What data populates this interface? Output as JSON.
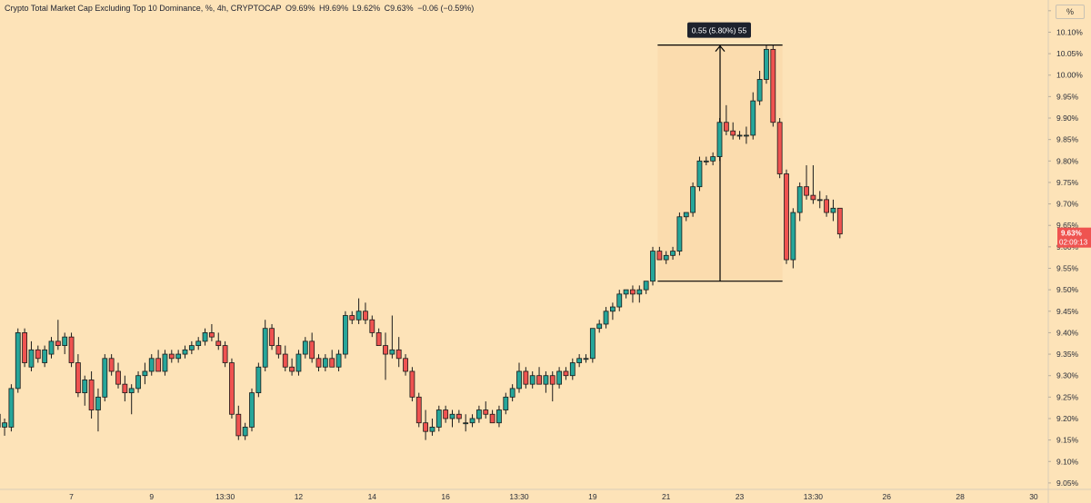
{
  "header": {
    "title": "Crypto Total Market Cap Excluding Top 10 Dominance, %, 4h, CRYPTOCAP",
    "open": "O9.69%",
    "high": "H9.69%",
    "low": "L9.62%",
    "close": "C9.63%",
    "change": "−0.06 (−0.59%)"
  },
  "unit_button": "%",
  "measure_label": "0.55 (5.80%) 55",
  "price_tag": {
    "value": "9.63%",
    "countdown": "02:09:13"
  },
  "colors": {
    "background": "#fde3b8",
    "up": "#26a69a",
    "down": "#ef5350",
    "measure_fill": "#fbdcae",
    "tooltip_bg": "#1e222d"
  },
  "chart_data": {
    "type": "candlestick",
    "interval": "4h",
    "ylim": [
      9.035,
      10.175
    ],
    "y_ticks": [
      "10.15%",
      "10.10%",
      "10.05%",
      "10.00%",
      "9.95%",
      "9.90%",
      "9.85%",
      "9.80%",
      "9.75%",
      "9.70%",
      "9.65%",
      "9.60%",
      "9.55%",
      "9.50%",
      "9.45%",
      "9.40%",
      "9.35%",
      "9.30%",
      "9.25%",
      "9.20%",
      "9.15%",
      "9.10%",
      "9.05%"
    ],
    "x_ticks": [
      "7",
      "9",
      "13:30",
      "12",
      "14",
      "16",
      "13:30",
      "19",
      "21",
      "23",
      "13:30",
      "26",
      "28",
      "30"
    ],
    "x_tick_index": [
      13,
      25,
      36,
      47,
      58,
      69,
      80,
      91,
      102,
      113,
      124,
      135,
      146,
      157
    ],
    "candles": [
      {
        "o": 9.1,
        "h": 9.13,
        "l": 9.04,
        "c": 9.05
      },
      {
        "o": 9.05,
        "h": 9.22,
        "l": 9.03,
        "c": 9.21
      },
      {
        "o": 9.21,
        "h": 9.23,
        "l": 9.15,
        "c": 9.18
      },
      {
        "o": 9.18,
        "h": 9.2,
        "l": 9.16,
        "c": 9.19
      },
      {
        "o": 9.18,
        "h": 9.28,
        "l": 9.17,
        "c": 9.27
      },
      {
        "o": 9.27,
        "h": 9.41,
        "l": 9.26,
        "c": 9.4
      },
      {
        "o": 9.4,
        "h": 9.41,
        "l": 9.32,
        "c": 9.33
      },
      {
        "o": 9.32,
        "h": 9.38,
        "l": 9.31,
        "c": 9.36
      },
      {
        "o": 9.36,
        "h": 9.37,
        "l": 9.33,
        "c": 9.34
      },
      {
        "o": 9.33,
        "h": 9.37,
        "l": 9.32,
        "c": 9.36
      },
      {
        "o": 9.35,
        "h": 9.39,
        "l": 9.34,
        "c": 9.38
      },
      {
        "o": 9.38,
        "h": 9.43,
        "l": 9.36,
        "c": 9.37
      },
      {
        "o": 9.37,
        "h": 9.4,
        "l": 9.35,
        "c": 9.39
      },
      {
        "o": 9.39,
        "h": 9.4,
        "l": 9.32,
        "c": 9.33
      },
      {
        "o": 9.33,
        "h": 9.35,
        "l": 9.25,
        "c": 9.26
      },
      {
        "o": 9.26,
        "h": 9.3,
        "l": 9.23,
        "c": 9.29
      },
      {
        "o": 9.29,
        "h": 9.31,
        "l": 9.2,
        "c": 9.22
      },
      {
        "o": 9.22,
        "h": 9.27,
        "l": 9.17,
        "c": 9.25
      },
      {
        "o": 9.25,
        "h": 9.35,
        "l": 9.24,
        "c": 9.34
      },
      {
        "o": 9.34,
        "h": 9.35,
        "l": 9.3,
        "c": 9.31
      },
      {
        "o": 9.31,
        "h": 9.33,
        "l": 9.27,
        "c": 9.28
      },
      {
        "o": 9.28,
        "h": 9.3,
        "l": 9.24,
        "c": 9.26
      },
      {
        "o": 9.26,
        "h": 9.28,
        "l": 9.21,
        "c": 9.27
      },
      {
        "o": 9.27,
        "h": 9.31,
        "l": 9.26,
        "c": 9.3
      },
      {
        "o": 9.3,
        "h": 9.33,
        "l": 9.28,
        "c": 9.31
      },
      {
        "o": 9.31,
        "h": 9.35,
        "l": 9.3,
        "c": 9.34
      },
      {
        "o": 9.34,
        "h": 9.36,
        "l": 9.31,
        "c": 9.31
      },
      {
        "o": 9.31,
        "h": 9.36,
        "l": 9.3,
        "c": 9.35
      },
      {
        "o": 9.35,
        "h": 9.36,
        "l": 9.33,
        "c": 9.34
      },
      {
        "o": 9.34,
        "h": 9.36,
        "l": 9.33,
        "c": 9.35
      },
      {
        "o": 9.35,
        "h": 9.37,
        "l": 9.34,
        "c": 9.36
      },
      {
        "o": 9.36,
        "h": 9.38,
        "l": 9.35,
        "c": 9.37
      },
      {
        "o": 9.37,
        "h": 9.39,
        "l": 9.36,
        "c": 9.38
      },
      {
        "o": 9.38,
        "h": 9.41,
        "l": 9.37,
        "c": 9.4
      },
      {
        "o": 9.4,
        "h": 9.42,
        "l": 9.38,
        "c": 9.39
      },
      {
        "o": 9.38,
        "h": 9.4,
        "l": 9.36,
        "c": 9.37
      },
      {
        "o": 9.37,
        "h": 9.38,
        "l": 9.32,
        "c": 9.33
      },
      {
        "o": 9.33,
        "h": 9.34,
        "l": 9.2,
        "c": 9.21
      },
      {
        "o": 9.21,
        "h": 9.23,
        "l": 9.15,
        "c": 9.16
      },
      {
        "o": 9.16,
        "h": 9.19,
        "l": 9.15,
        "c": 9.18
      },
      {
        "o": 9.18,
        "h": 9.27,
        "l": 9.17,
        "c": 9.26
      },
      {
        "o": 9.26,
        "h": 9.33,
        "l": 9.25,
        "c": 9.32
      },
      {
        "o": 9.32,
        "h": 9.43,
        "l": 9.31,
        "c": 9.41
      },
      {
        "o": 9.41,
        "h": 9.42,
        "l": 9.36,
        "c": 9.37
      },
      {
        "o": 9.37,
        "h": 9.39,
        "l": 9.34,
        "c": 9.35
      },
      {
        "o": 9.35,
        "h": 9.37,
        "l": 9.31,
        "c": 9.32
      },
      {
        "o": 9.32,
        "h": 9.34,
        "l": 9.3,
        "c": 9.31
      },
      {
        "o": 9.31,
        "h": 9.36,
        "l": 9.3,
        "c": 9.35
      },
      {
        "o": 9.35,
        "h": 9.39,
        "l": 9.34,
        "c": 9.38
      },
      {
        "o": 9.38,
        "h": 9.4,
        "l": 9.33,
        "c": 9.34
      },
      {
        "o": 9.34,
        "h": 9.35,
        "l": 9.31,
        "c": 9.32
      },
      {
        "o": 9.32,
        "h": 9.35,
        "l": 9.31,
        "c": 9.34
      },
      {
        "o": 9.34,
        "h": 9.36,
        "l": 9.32,
        "c": 9.32
      },
      {
        "o": 9.32,
        "h": 9.36,
        "l": 9.31,
        "c": 9.35
      },
      {
        "o": 9.35,
        "h": 9.45,
        "l": 9.34,
        "c": 9.44
      },
      {
        "o": 9.44,
        "h": 9.45,
        "l": 9.42,
        "c": 9.43
      },
      {
        "o": 9.43,
        "h": 9.48,
        "l": 9.42,
        "c": 9.45
      },
      {
        "o": 9.45,
        "h": 9.47,
        "l": 9.42,
        "c": 9.43
      },
      {
        "o": 9.43,
        "h": 9.44,
        "l": 9.39,
        "c": 9.4
      },
      {
        "o": 9.4,
        "h": 9.41,
        "l": 9.37,
        "c": 9.37
      },
      {
        "o": 9.37,
        "h": 9.4,
        "l": 9.29,
        "c": 9.35
      },
      {
        "o": 9.35,
        "h": 9.44,
        "l": 9.34,
        "c": 9.36
      },
      {
        "o": 9.36,
        "h": 9.39,
        "l": 9.32,
        "c": 9.34
      },
      {
        "o": 9.34,
        "h": 9.35,
        "l": 9.3,
        "c": 9.31
      },
      {
        "o": 9.31,
        "h": 9.32,
        "l": 9.24,
        "c": 9.25
      },
      {
        "o": 9.25,
        "h": 9.26,
        "l": 9.18,
        "c": 9.19
      },
      {
        "o": 9.19,
        "h": 9.22,
        "l": 9.15,
        "c": 9.17
      },
      {
        "o": 9.17,
        "h": 9.2,
        "l": 9.16,
        "c": 9.18
      },
      {
        "o": 9.18,
        "h": 9.23,
        "l": 9.17,
        "c": 9.22
      },
      {
        "o": 9.22,
        "h": 9.23,
        "l": 9.19,
        "c": 9.2
      },
      {
        "o": 9.2,
        "h": 9.22,
        "l": 9.18,
        "c": 9.21
      },
      {
        "o": 9.21,
        "h": 9.22,
        "l": 9.19,
        "c": 9.2
      },
      {
        "o": 9.19,
        "h": 9.21,
        "l": 9.17,
        "c": 9.19
      },
      {
        "o": 9.19,
        "h": 9.21,
        "l": 9.18,
        "c": 9.2
      },
      {
        "o": 9.2,
        "h": 9.23,
        "l": 9.19,
        "c": 9.22
      },
      {
        "o": 9.22,
        "h": 9.24,
        "l": 9.2,
        "c": 9.21
      },
      {
        "o": 9.21,
        "h": 9.22,
        "l": 9.19,
        "c": 9.19
      },
      {
        "o": 9.19,
        "h": 9.23,
        "l": 9.18,
        "c": 9.22
      },
      {
        "o": 9.22,
        "h": 9.26,
        "l": 9.21,
        "c": 9.25
      },
      {
        "o": 9.25,
        "h": 9.28,
        "l": 9.24,
        "c": 9.27
      },
      {
        "o": 9.27,
        "h": 9.33,
        "l": 9.26,
        "c": 9.31
      },
      {
        "o": 9.31,
        "h": 9.32,
        "l": 9.27,
        "c": 9.28
      },
      {
        "o": 9.28,
        "h": 9.31,
        "l": 9.27,
        "c": 9.3
      },
      {
        "o": 9.3,
        "h": 9.32,
        "l": 9.28,
        "c": 9.28
      },
      {
        "o": 9.28,
        "h": 9.31,
        "l": 9.26,
        "c": 9.3
      },
      {
        "o": 9.3,
        "h": 9.31,
        "l": 9.24,
        "c": 9.28
      },
      {
        "o": 9.28,
        "h": 9.32,
        "l": 9.27,
        "c": 9.31
      },
      {
        "o": 9.31,
        "h": 9.32,
        "l": 9.29,
        "c": 9.3
      },
      {
        "o": 9.3,
        "h": 9.34,
        "l": 9.29,
        "c": 9.33
      },
      {
        "o": 9.33,
        "h": 9.35,
        "l": 9.32,
        "c": 9.34
      },
      {
        "o": 9.34,
        "h": 9.35,
        "l": 9.33,
        "c": 9.34
      },
      {
        "o": 9.34,
        "h": 9.41,
        "l": 9.33,
        "c": 9.41
      },
      {
        "o": 9.41,
        "h": 9.43,
        "l": 9.4,
        "c": 9.42
      },
      {
        "o": 9.42,
        "h": 9.46,
        "l": 9.41,
        "c": 9.45
      },
      {
        "o": 9.45,
        "h": 9.47,
        "l": 9.43,
        "c": 9.46
      },
      {
        "o": 9.46,
        "h": 9.5,
        "l": 9.45,
        "c": 9.49
      },
      {
        "o": 9.49,
        "h": 9.5,
        "l": 9.48,
        "c": 9.5
      },
      {
        "o": 9.5,
        "h": 9.51,
        "l": 9.47,
        "c": 9.49
      },
      {
        "o": 9.49,
        "h": 9.51,
        "l": 9.47,
        "c": 9.5
      },
      {
        "o": 9.5,
        "h": 9.52,
        "l": 9.49,
        "c": 9.52
      },
      {
        "o": 9.52,
        "h": 9.6,
        "l": 9.51,
        "c": 9.59
      },
      {
        "o": 9.59,
        "h": 9.6,
        "l": 9.57,
        "c": 9.57
      },
      {
        "o": 9.57,
        "h": 9.59,
        "l": 9.56,
        "c": 9.58
      },
      {
        "o": 9.58,
        "h": 9.6,
        "l": 9.57,
        "c": 9.59
      },
      {
        "o": 9.59,
        "h": 9.68,
        "l": 9.58,
        "c": 9.67
      },
      {
        "o": 9.67,
        "h": 9.68,
        "l": 9.66,
        "c": 9.68
      },
      {
        "o": 9.68,
        "h": 9.75,
        "l": 9.67,
        "c": 9.74
      },
      {
        "o": 9.74,
        "h": 9.81,
        "l": 9.73,
        "c": 9.8
      },
      {
        "o": 9.8,
        "h": 9.81,
        "l": 9.79,
        "c": 9.8
      },
      {
        "o": 9.8,
        "h": 9.82,
        "l": 9.79,
        "c": 9.81
      },
      {
        "o": 9.81,
        "h": 9.9,
        "l": 9.8,
        "c": 9.89
      },
      {
        "o": 9.89,
        "h": 9.93,
        "l": 9.86,
        "c": 9.87
      },
      {
        "o": 9.87,
        "h": 9.89,
        "l": 9.85,
        "c": 9.86
      },
      {
        "o": 9.86,
        "h": 9.87,
        "l": 9.85,
        "c": 9.86
      },
      {
        "o": 9.86,
        "h": 9.88,
        "l": 9.84,
        "c": 9.86
      },
      {
        "o": 9.86,
        "h": 9.96,
        "l": 9.85,
        "c": 9.94
      },
      {
        "o": 9.94,
        "h": 10.01,
        "l": 9.93,
        "c": 9.99
      },
      {
        "o": 9.99,
        "h": 10.07,
        "l": 9.98,
        "c": 10.06
      },
      {
        "o": 10.06,
        "h": 10.07,
        "l": 9.88,
        "c": 9.89
      },
      {
        "o": 9.89,
        "h": 9.9,
        "l": 9.76,
        "c": 9.77
      },
      {
        "o": 9.77,
        "h": 9.78,
        "l": 9.56,
        "c": 9.57
      },
      {
        "o": 9.57,
        "h": 9.69,
        "l": 9.55,
        "c": 9.68
      },
      {
        "o": 9.68,
        "h": 9.75,
        "l": 9.66,
        "c": 9.74
      },
      {
        "o": 9.74,
        "h": 9.79,
        "l": 9.71,
        "c": 9.72
      },
      {
        "o": 9.72,
        "h": 9.79,
        "l": 9.7,
        "c": 9.71
      },
      {
        "o": 9.71,
        "h": 9.73,
        "l": 9.69,
        "c": 9.71
      },
      {
        "o": 9.71,
        "h": 9.72,
        "l": 9.67,
        "c": 9.68
      },
      {
        "o": 9.68,
        "h": 9.71,
        "l": 9.66,
        "c": 9.69
      },
      {
        "o": 9.69,
        "h": 9.69,
        "l": 9.62,
        "c": 9.63
      }
    ],
    "measure": {
      "from_price": 9.52,
      "to_price": 10.07,
      "from_index": 101,
      "to_index": 119
    }
  }
}
